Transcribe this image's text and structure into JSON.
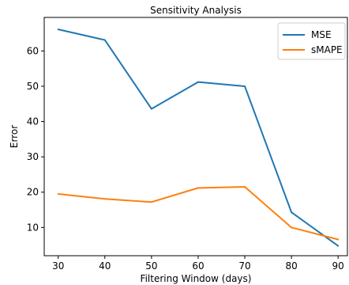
{
  "chart_data": {
    "type": "line",
    "title": "Sensitivity Analysis",
    "xlabel": "Filtering Window (days)",
    "ylabel": "Error",
    "x": [
      30,
      40,
      50,
      60,
      70,
      80,
      90
    ],
    "xlim": [
      27,
      92
    ],
    "ylim": [
      2,
      69.5
    ],
    "xticks": [
      30,
      40,
      50,
      60,
      70,
      80,
      90
    ],
    "yticks": [
      10,
      20,
      30,
      40,
      50,
      60
    ],
    "grid": false,
    "legend_position": "top-right",
    "series": [
      {
        "name": "MSE",
        "color": "#1f77b4",
        "values": [
          66.1,
          63.1,
          43.6,
          51.2,
          50.0,
          14.3,
          4.8
        ]
      },
      {
        "name": "sMAPE",
        "color": "#ff7f0e",
        "values": [
          19.5,
          18.1,
          17.2,
          21.2,
          21.5,
          10.0,
          6.6
        ]
      }
    ]
  }
}
